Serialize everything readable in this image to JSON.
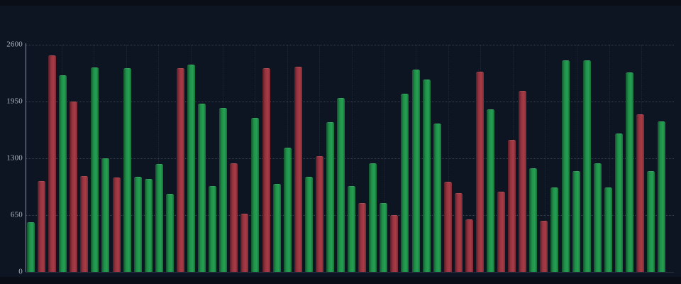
{
  "chart_data": {
    "type": "bar",
    "title": "",
    "xlabel": "",
    "ylabel": "",
    "x_tick_labels": [],
    "y_ticks": [
      0,
      650,
      1300,
      1950,
      2600
    ],
    "y_tick_labels": [
      "0",
      "650",
      "1300",
      "1950",
      "2600"
    ],
    "ylim": [
      0,
      2600
    ],
    "bar_count": 60,
    "grid": {
      "horizontal": true,
      "vertical": true,
      "style": "dotted"
    },
    "legend_position": "none",
    "series": [
      {
        "name": "bars",
        "values": [
          570,
          1040,
          2480,
          2250,
          1950,
          1100,
          2340,
          1300,
          1080,
          2330,
          1090,
          1065,
          1235,
          895,
          2330,
          2370,
          1925,
          980,
          1875,
          1245,
          670,
          1760,
          2335,
          1010,
          1420,
          2345,
          1090,
          1325,
          1715,
          1990,
          980,
          790,
          1245,
          785,
          650,
          2040,
          2315,
          2205,
          1695,
          1030,
          905,
          605,
          2295,
          1860,
          915,
          1515,
          2075,
          1190,
          585,
          970,
          2425,
          1150,
          2425,
          1245,
          965,
          1585,
          2285,
          1800,
          1155,
          1720
        ],
        "directions": [
          "up",
          "down",
          "down",
          "up",
          "down",
          "down",
          "up",
          "up",
          "down",
          "up",
          "up",
          "up",
          "up",
          "up",
          "down",
          "up",
          "up",
          "up",
          "up",
          "down",
          "down",
          "up",
          "down",
          "up",
          "up",
          "down",
          "up",
          "down",
          "up",
          "up",
          "up",
          "down",
          "up",
          "up",
          "down",
          "up",
          "up",
          "up",
          "up",
          "down",
          "down",
          "down",
          "down",
          "up",
          "down",
          "down",
          "down",
          "up",
          "down",
          "up",
          "up",
          "up",
          "up",
          "up",
          "up",
          "up",
          "up",
          "down",
          "up",
          "up"
        ]
      }
    ],
    "palette": {
      "up_green": "#22964d",
      "down_red": "#9b3540",
      "background": "#0e1522",
      "axis_line": "#8b94a6",
      "tick_label": "#adb5c4"
    }
  }
}
